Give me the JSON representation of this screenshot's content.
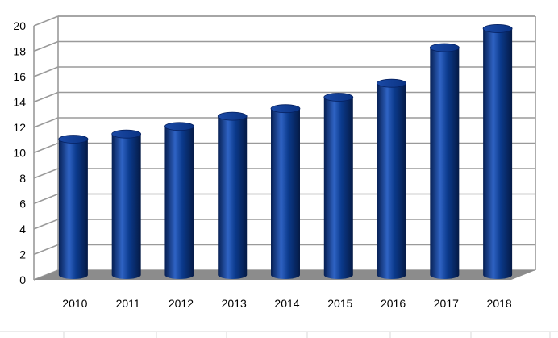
{
  "chart_data": {
    "type": "bar",
    "style": "3d-cylinder",
    "categories": [
      "2010",
      "2011",
      "2012",
      "2013",
      "2014",
      "2015",
      "2016",
      "2017",
      "2018"
    ],
    "values": [
      10.7,
      11.1,
      11.7,
      12.5,
      13.1,
      14.0,
      15.1,
      17.9,
      19.4
    ],
    "title": "",
    "xlabel": "",
    "ylabel": "",
    "ylim": [
      0,
      20
    ],
    "yticks": [
      "0",
      "2",
      "4",
      "6",
      "8",
      "10",
      "12",
      "14",
      "16",
      "18",
      "20"
    ],
    "grid": true,
    "legend": "none",
    "colors": {
      "bar": "#0b3a8c",
      "bar_highlight": "#2f63c4",
      "bar_shadow": "#061f52",
      "floor": "#8c8c8c",
      "grid": "#9a9a9a"
    }
  }
}
